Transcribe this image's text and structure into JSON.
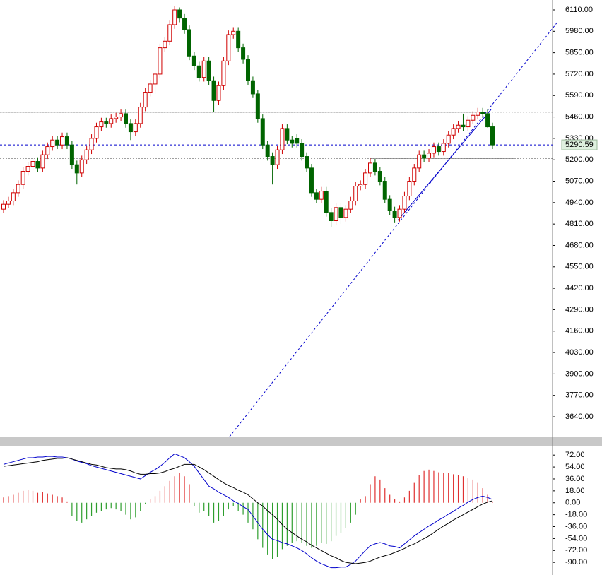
{
  "chart_data": [
    {
      "type": "candlestick",
      "ylim": [
        3520,
        6170
      ],
      "yticks": [
        {
          "value": 6110,
          "label": "6110.00"
        },
        {
          "value": 5980,
          "label": "5980.00"
        },
        {
          "value": 5850,
          "label": "5850.00"
        },
        {
          "value": 5720,
          "label": "5720.00"
        },
        {
          "value": 5590,
          "label": "5590.00"
        },
        {
          "value": 5460,
          "label": "5460.00"
        },
        {
          "value": 5330,
          "label": "5330.00"
        },
        {
          "value": 5200,
          "label": "5200.00"
        },
        {
          "value": 5070,
          "label": "5070.00"
        },
        {
          "value": 4940,
          "label": "4940.00"
        },
        {
          "value": 4810,
          "label": "4810.00"
        },
        {
          "value": 4680,
          "label": "4680.00"
        },
        {
          "value": 4550,
          "label": "4550.00"
        },
        {
          "value": 4420,
          "label": "4420.00"
        },
        {
          "value": 4290,
          "label": "4290.00"
        },
        {
          "value": 4160,
          "label": "4160.00"
        },
        {
          "value": 4030,
          "label": "4030.00"
        },
        {
          "value": 3900,
          "label": "3900.00"
        },
        {
          "value": 3770,
          "label": "3770.00"
        },
        {
          "value": 3640,
          "label": "3640.00"
        }
      ],
      "up_color": "#d00000",
      "down_color": "#006400",
      "levels": [
        5490,
        5210
      ],
      "open": [
        4900,
        4930,
        4950,
        5000,
        5050,
        5130,
        5160,
        5190,
        5150,
        5230,
        5280,
        5320,
        5290,
        5340,
        5290,
        5170,
        5120,
        5200,
        5260,
        5330,
        5400,
        5430,
        5420,
        5450,
        5460,
        5480,
        5420,
        5370,
        5420,
        5520,
        5610,
        5660,
        5720,
        5880,
        5920,
        6020,
        6110,
        6060,
        5990,
        5830,
        5770,
        5700,
        5800,
        5680,
        5560,
        5650,
        5800,
        5960,
        5980,
        5880,
        5810,
        5680,
        5600,
        5450,
        5290,
        5220,
        5170,
        5260,
        5390,
        5320,
        5330,
        5300,
        5220,
        5150,
        5000,
        4960,
        5010,
        4880,
        4830,
        4910,
        4850,
        4900,
        4950,
        5040,
        5050,
        5120,
        5180,
        5130,
        5070,
        4960,
        4890,
        4850,
        4900,
        4980,
        5070,
        5150,
        5230,
        5210,
        5240,
        5280,
        5250,
        5300,
        5350,
        5390,
        5410,
        5400,
        5440,
        5470,
        5490,
        5480,
        5400
      ],
      "high": [
        4955,
        4975,
        5025,
        5075,
        5155,
        5185,
        5215,
        5215,
        5255,
        5305,
        5345,
        5345,
        5365,
        5365,
        5315,
        5195,
        5225,
        5285,
        5355,
        5425,
        5455,
        5455,
        5475,
        5485,
        5505,
        5505,
        5445,
        5445,
        5545,
        5635,
        5685,
        5745,
        5905,
        5945,
        6045,
        6135,
        6125,
        6085,
        6015,
        5855,
        5795,
        5825,
        5825,
        5705,
        5675,
        5825,
        5985,
        6005,
        6005,
        5905,
        5835,
        5705,
        5625,
        5475,
        5315,
        5245,
        5285,
        5415,
        5415,
        5345,
        5355,
        5325,
        5245,
        5175,
        5025,
        5035,
        5035,
        4905,
        4935,
        4935,
        4925,
        4975,
        5065,
        5075,
        5145,
        5210,
        5205,
        5155,
        5095,
        4985,
        4915,
        4925,
        5005,
        5095,
        5175,
        5255,
        5255,
        5265,
        5305,
        5305,
        5325,
        5375,
        5415,
        5435,
        5480,
        5465,
        5495,
        5515,
        5515,
        5505,
        5425
      ],
      "low": [
        4875,
        4905,
        4925,
        4975,
        5025,
        5105,
        5135,
        5125,
        5125,
        5205,
        5255,
        5265,
        5265,
        5265,
        5145,
        5050,
        5095,
        5175,
        5235,
        5305,
        5375,
        5395,
        5395,
        5425,
        5435,
        5395,
        5320,
        5345,
        5395,
        5495,
        5585,
        5600,
        5695,
        5855,
        5895,
        5995,
        6035,
        5965,
        5805,
        5745,
        5675,
        5675,
        5655,
        5490,
        5535,
        5625,
        5775,
        5935,
        5855,
        5785,
        5655,
        5575,
        5425,
        5265,
        5195,
        5050,
        5145,
        5235,
        5295,
        5275,
        5275,
        5195,
        5125,
        4975,
        4935,
        4935,
        4855,
        4790,
        4805,
        4810,
        4825,
        4875,
        4925,
        5015,
        5025,
        5095,
        5105,
        5045,
        4935,
        4865,
        4820,
        4825,
        4875,
        4955,
        5045,
        5125,
        5185,
        5185,
        5215,
        5225,
        5225,
        5275,
        5325,
        5365,
        5375,
        5375,
        5415,
        5445,
        5455,
        5395,
        5265
      ],
      "close": [
        4930,
        4950,
        5000,
        5050,
        5130,
        5160,
        5190,
        5150,
        5230,
        5280,
        5320,
        5290,
        5340,
        5290,
        5170,
        5120,
        5200,
        5260,
        5330,
        5400,
        5430,
        5420,
        5450,
        5460,
        5480,
        5420,
        5370,
        5420,
        5520,
        5610,
        5660,
        5720,
        5880,
        5920,
        6020,
        6110,
        6060,
        5990,
        5830,
        5770,
        5700,
        5800,
        5680,
        5560,
        5650,
        5800,
        5960,
        5980,
        5880,
        5810,
        5680,
        5600,
        5450,
        5290,
        5220,
        5170,
        5260,
        5390,
        5320,
        5300,
        5300,
        5220,
        5150,
        5000,
        4960,
        5010,
        4880,
        4830,
        4910,
        4850,
        4900,
        4950,
        5040,
        5050,
        5120,
        5180,
        5130,
        5070,
        4960,
        4890,
        4850,
        4900,
        4980,
        5070,
        5150,
        5230,
        5210,
        5240,
        5280,
        5250,
        5300,
        5350,
        5390,
        5410,
        5400,
        5440,
        5470,
        5490,
        5480,
        5400,
        5290.59
      ]
    },
    {
      "type": "macd",
      "ylim": [
        -109,
        85
      ],
      "yticks": [
        {
          "value": 72,
          "label": "72.00"
        },
        {
          "value": 54,
          "label": "54.00"
        },
        {
          "value": 36,
          "label": "36.00"
        },
        {
          "value": 18,
          "label": "18.00"
        },
        {
          "value": 0,
          "label": "0.00"
        },
        {
          "value": -18,
          "label": "-18.00"
        },
        {
          "value": -36,
          "label": "-36.00"
        },
        {
          "value": -54,
          "label": "-54.00"
        },
        {
          "value": -72,
          "label": "-72.00"
        },
        {
          "value": -90,
          "label": "-90.00"
        }
      ],
      "histogram": {
        "up_color": "#e03030",
        "down_color": "#2e9e2e",
        "values": [
          8,
          10,
          12,
          15,
          18,
          20,
          18,
          15,
          16,
          14,
          12,
          10,
          8,
          2,
          -20,
          -28,
          -30,
          -25,
          -20,
          -15,
          -12,
          -10,
          -8,
          -10,
          -12,
          -18,
          -25,
          -22,
          -12,
          -2,
          5,
          10,
          18,
          25,
          33,
          40,
          45,
          40,
          28,
          -5,
          -15,
          -12,
          -20,
          -30,
          -28,
          -20,
          -10,
          -5,
          -12,
          -18,
          -30,
          -40,
          -55,
          -68,
          -78,
          -85,
          -82,
          -70,
          -65,
          -60,
          -58,
          -60,
          -65,
          -68,
          -65,
          -60,
          -62,
          -58,
          -50,
          -45,
          -38,
          -30,
          -18,
          5,
          10,
          28,
          40,
          35,
          22,
          12,
          5,
          2,
          8,
          18,
          30,
          42,
          48,
          50,
          48,
          46,
          45,
          45,
          43,
          42,
          40,
          38,
          35,
          30,
          22,
          12,
          2
        ]
      },
      "series": [
        {
          "color": "#0000cc",
          "values": [
            58,
            60,
            62,
            64,
            66,
            68,
            68,
            69,
            69,
            70,
            70,
            69,
            69,
            68,
            66,
            63,
            61,
            59,
            56,
            54,
            52,
            50,
            48,
            46,
            44,
            42,
            40,
            38,
            36,
            41,
            46,
            50,
            55,
            61,
            68,
            74,
            71,
            68,
            62,
            55,
            45,
            35,
            25,
            21,
            16,
            12,
            8,
            3,
            -1,
            -6,
            -10,
            -20,
            -30,
            -40,
            -48,
            -55,
            -57,
            -60,
            -62,
            -65,
            -68,
            -72,
            -77,
            -83,
            -88,
            -92,
            -95,
            -98,
            -98,
            -97,
            -97,
            -93,
            -88,
            -80,
            -72,
            -65,
            -62,
            -60,
            -62,
            -65,
            -66,
            -68,
            -62,
            -56,
            -50,
            -45,
            -40,
            -35,
            -31,
            -26,
            -22,
            -17,
            -13,
            -8,
            -4,
            1,
            5,
            8,
            10,
            8,
            5
          ]
        },
        {
          "color": "#000000",
          "values": [
            55,
            56,
            57,
            58,
            59,
            60,
            61,
            62,
            64,
            65,
            66,
            67,
            67,
            68,
            66,
            64,
            62,
            60,
            58,
            57,
            55,
            53,
            52,
            51,
            51,
            50,
            48,
            45,
            43,
            43,
            44,
            44,
            45,
            47,
            50,
            52,
            55,
            58,
            58,
            58,
            54,
            50,
            45,
            40,
            35,
            30,
            26,
            23,
            19,
            16,
            12,
            6,
            0,
            -5,
            -12,
            -18,
            -25,
            -33,
            -40,
            -45,
            -50,
            -55,
            -59,
            -64,
            -68,
            -72,
            -76,
            -80,
            -83,
            -87,
            -90,
            -91,
            -92,
            -91,
            -90,
            -88,
            -85,
            -82,
            -80,
            -78,
            -75,
            -72,
            -69,
            -65,
            -62,
            -58,
            -54,
            -50,
            -45,
            -40,
            -35,
            -31,
            -26,
            -22,
            -18,
            -14,
            -10,
            -6,
            -2,
            1,
            3
          ]
        }
      ]
    }
  ]
}
